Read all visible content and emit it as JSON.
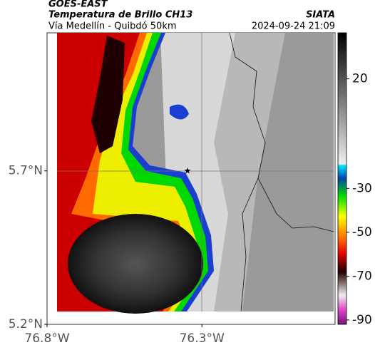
{
  "header": {
    "title": "GOES-EAST",
    "subtitle": "Temperatura de Brillo CH13",
    "location": "Vía Medellín - Quibdó 50km",
    "source": "SIATA",
    "datetime": "2024-09-24 21:09"
  },
  "map": {
    "xlim": [
      -76.8,
      -75.87
    ],
    "ylim": [
      5.2,
      6.15
    ],
    "xticks": [
      {
        "value": -76.8,
        "label": "76.8°W"
      },
      {
        "value": -76.3,
        "label": "76.3°W"
      }
    ],
    "yticks": [
      {
        "value": 5.7,
        "label": "5.7°N"
      },
      {
        "value": 5.2,
        "label": "5.2°N"
      }
    ]
  },
  "colorbar": {
    "lim": [
      -92,
      41
    ],
    "ticks": [
      20,
      -30,
      -50,
      -70,
      -90
    ]
  }
}
